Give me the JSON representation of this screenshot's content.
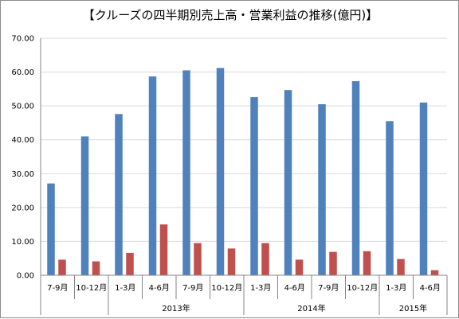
{
  "chart_data": {
    "type": "bar",
    "title": "【クルーズの四半期別売上高・営業利益の推移(億円)】",
    "categories": [
      "7-9月",
      "10-12月",
      "1-3月",
      "4-6月",
      "7-9月",
      "10-12月",
      "1-3月",
      "4-6月",
      "7-9月",
      "10-12月",
      "1-3月",
      "4-6月"
    ],
    "groups": [
      {
        "label": "",
        "count": 2
      },
      {
        "label": "2013年",
        "count": 4
      },
      {
        "label": "2014年",
        "count": 4
      },
      {
        "label": "2015年",
        "count": 2
      }
    ],
    "series": [
      {
        "color": "#4f81bd",
        "values": [
          27.1,
          41.0,
          47.6,
          58.7,
          60.5,
          61.2,
          52.6,
          54.7,
          50.5,
          57.3,
          45.5,
          51.0
        ]
      },
      {
        "color": "#c0504d",
        "values": [
          4.6,
          4.1,
          6.6,
          15.0,
          9.5,
          7.9,
          9.5,
          4.6,
          6.9,
          7.1,
          4.8,
          1.5
        ]
      }
    ],
    "ylim": [
      0,
      70
    ],
    "yticks": [
      "0.00",
      "10.00",
      "20.00",
      "30.00",
      "40.00",
      "50.00",
      "60.00",
      "70.00"
    ],
    "grid": true,
    "legend": "none"
  }
}
